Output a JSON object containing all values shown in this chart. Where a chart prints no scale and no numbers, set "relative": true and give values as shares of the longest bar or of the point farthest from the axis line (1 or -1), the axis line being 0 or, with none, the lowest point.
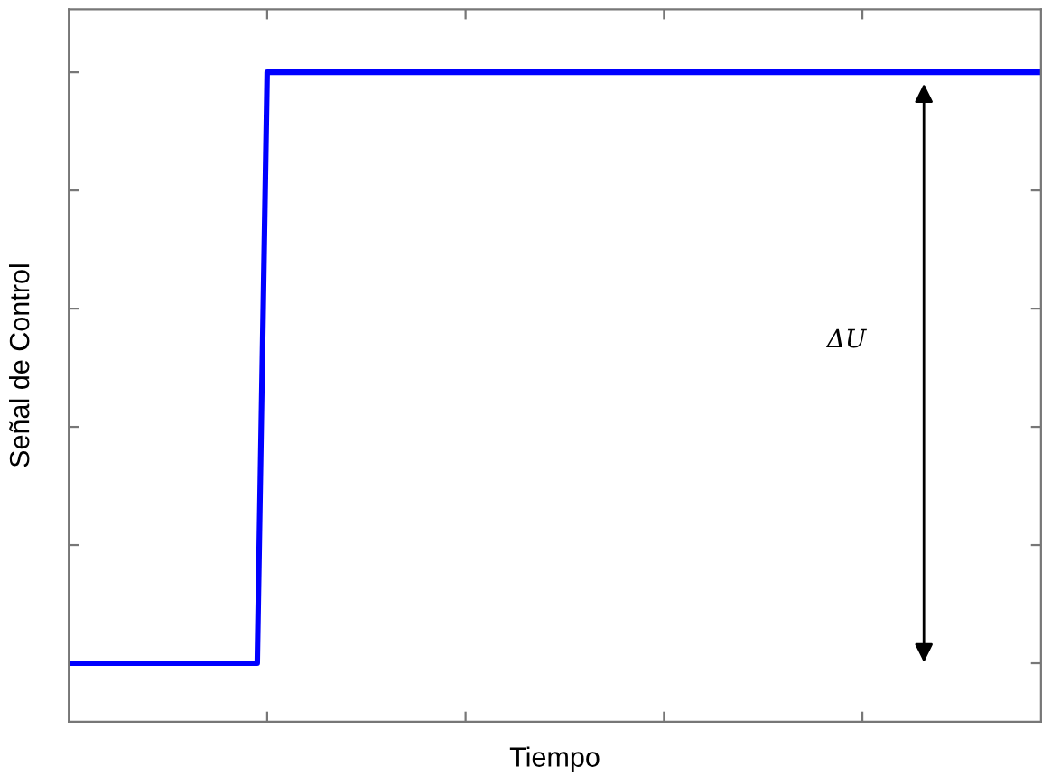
{
  "chart_data": {
    "type": "line",
    "relative": true,
    "xlabel": "Tiempo",
    "ylabel": "Señal de Control",
    "annotations": [
      "ΔU"
    ],
    "grid": false,
    "legend": false,
    "marker": "none",
    "line_style": "solid",
    "tick_labels": false,
    "categories": [
      null,
      null,
      null,
      null,
      null,
      null,
      null,
      null,
      null,
      null,
      null,
      null,
      null,
      null,
      null,
      null,
      null,
      null,
      null,
      null,
      null,
      null,
      null,
      null,
      null,
      null,
      null,
      null,
      null,
      null,
      null,
      null,
      null,
      null,
      null,
      null,
      null,
      null,
      null,
      null,
      null,
      null,
      null,
      null,
      null,
      null,
      null,
      null,
      null,
      null,
      null,
      null,
      null,
      null,
      null,
      null,
      null,
      null,
      null,
      null,
      null,
      null,
      null,
      null,
      null,
      null,
      null,
      null,
      null,
      null,
      null,
      null,
      null,
      null,
      null,
      null,
      null,
      null,
      null,
      null,
      null,
      null,
      null,
      null,
      null,
      null,
      null,
      null,
      null,
      null,
      null,
      null,
      null,
      null,
      null,
      null,
      null,
      null,
      null
    ],
    "series": [
      {
        "color": "#0000ff",
        "values": [
          0.09,
          0.09,
          0.09,
          0.09,
          0.09,
          0.09,
          0.09,
          0.09,
          0.09,
          0.09,
          0.09,
          0.09,
          0.09,
          0.09,
          0.09,
          0.09,
          0.09,
          0.09,
          0.09,
          0.09,
          1,
          1,
          1,
          1,
          1,
          1,
          1,
          1,
          1,
          1,
          1,
          1,
          1,
          1,
          1,
          1,
          1,
          1,
          1,
          1,
          1,
          1,
          1,
          1,
          1,
          1,
          1,
          1,
          1,
          1,
          1,
          1,
          1,
          1,
          1,
          1,
          1,
          1,
          1,
          1,
          1,
          1,
          1,
          1,
          1,
          1,
          1,
          1,
          1,
          1,
          1,
          1,
          1,
          1,
          1,
          1,
          1,
          1,
          1,
          1,
          1,
          1,
          1,
          1,
          1,
          1,
          1,
          1,
          1,
          1,
          1,
          1,
          1,
          1,
          1,
          1,
          1,
          1,
          1
        ]
      }
    ]
  }
}
